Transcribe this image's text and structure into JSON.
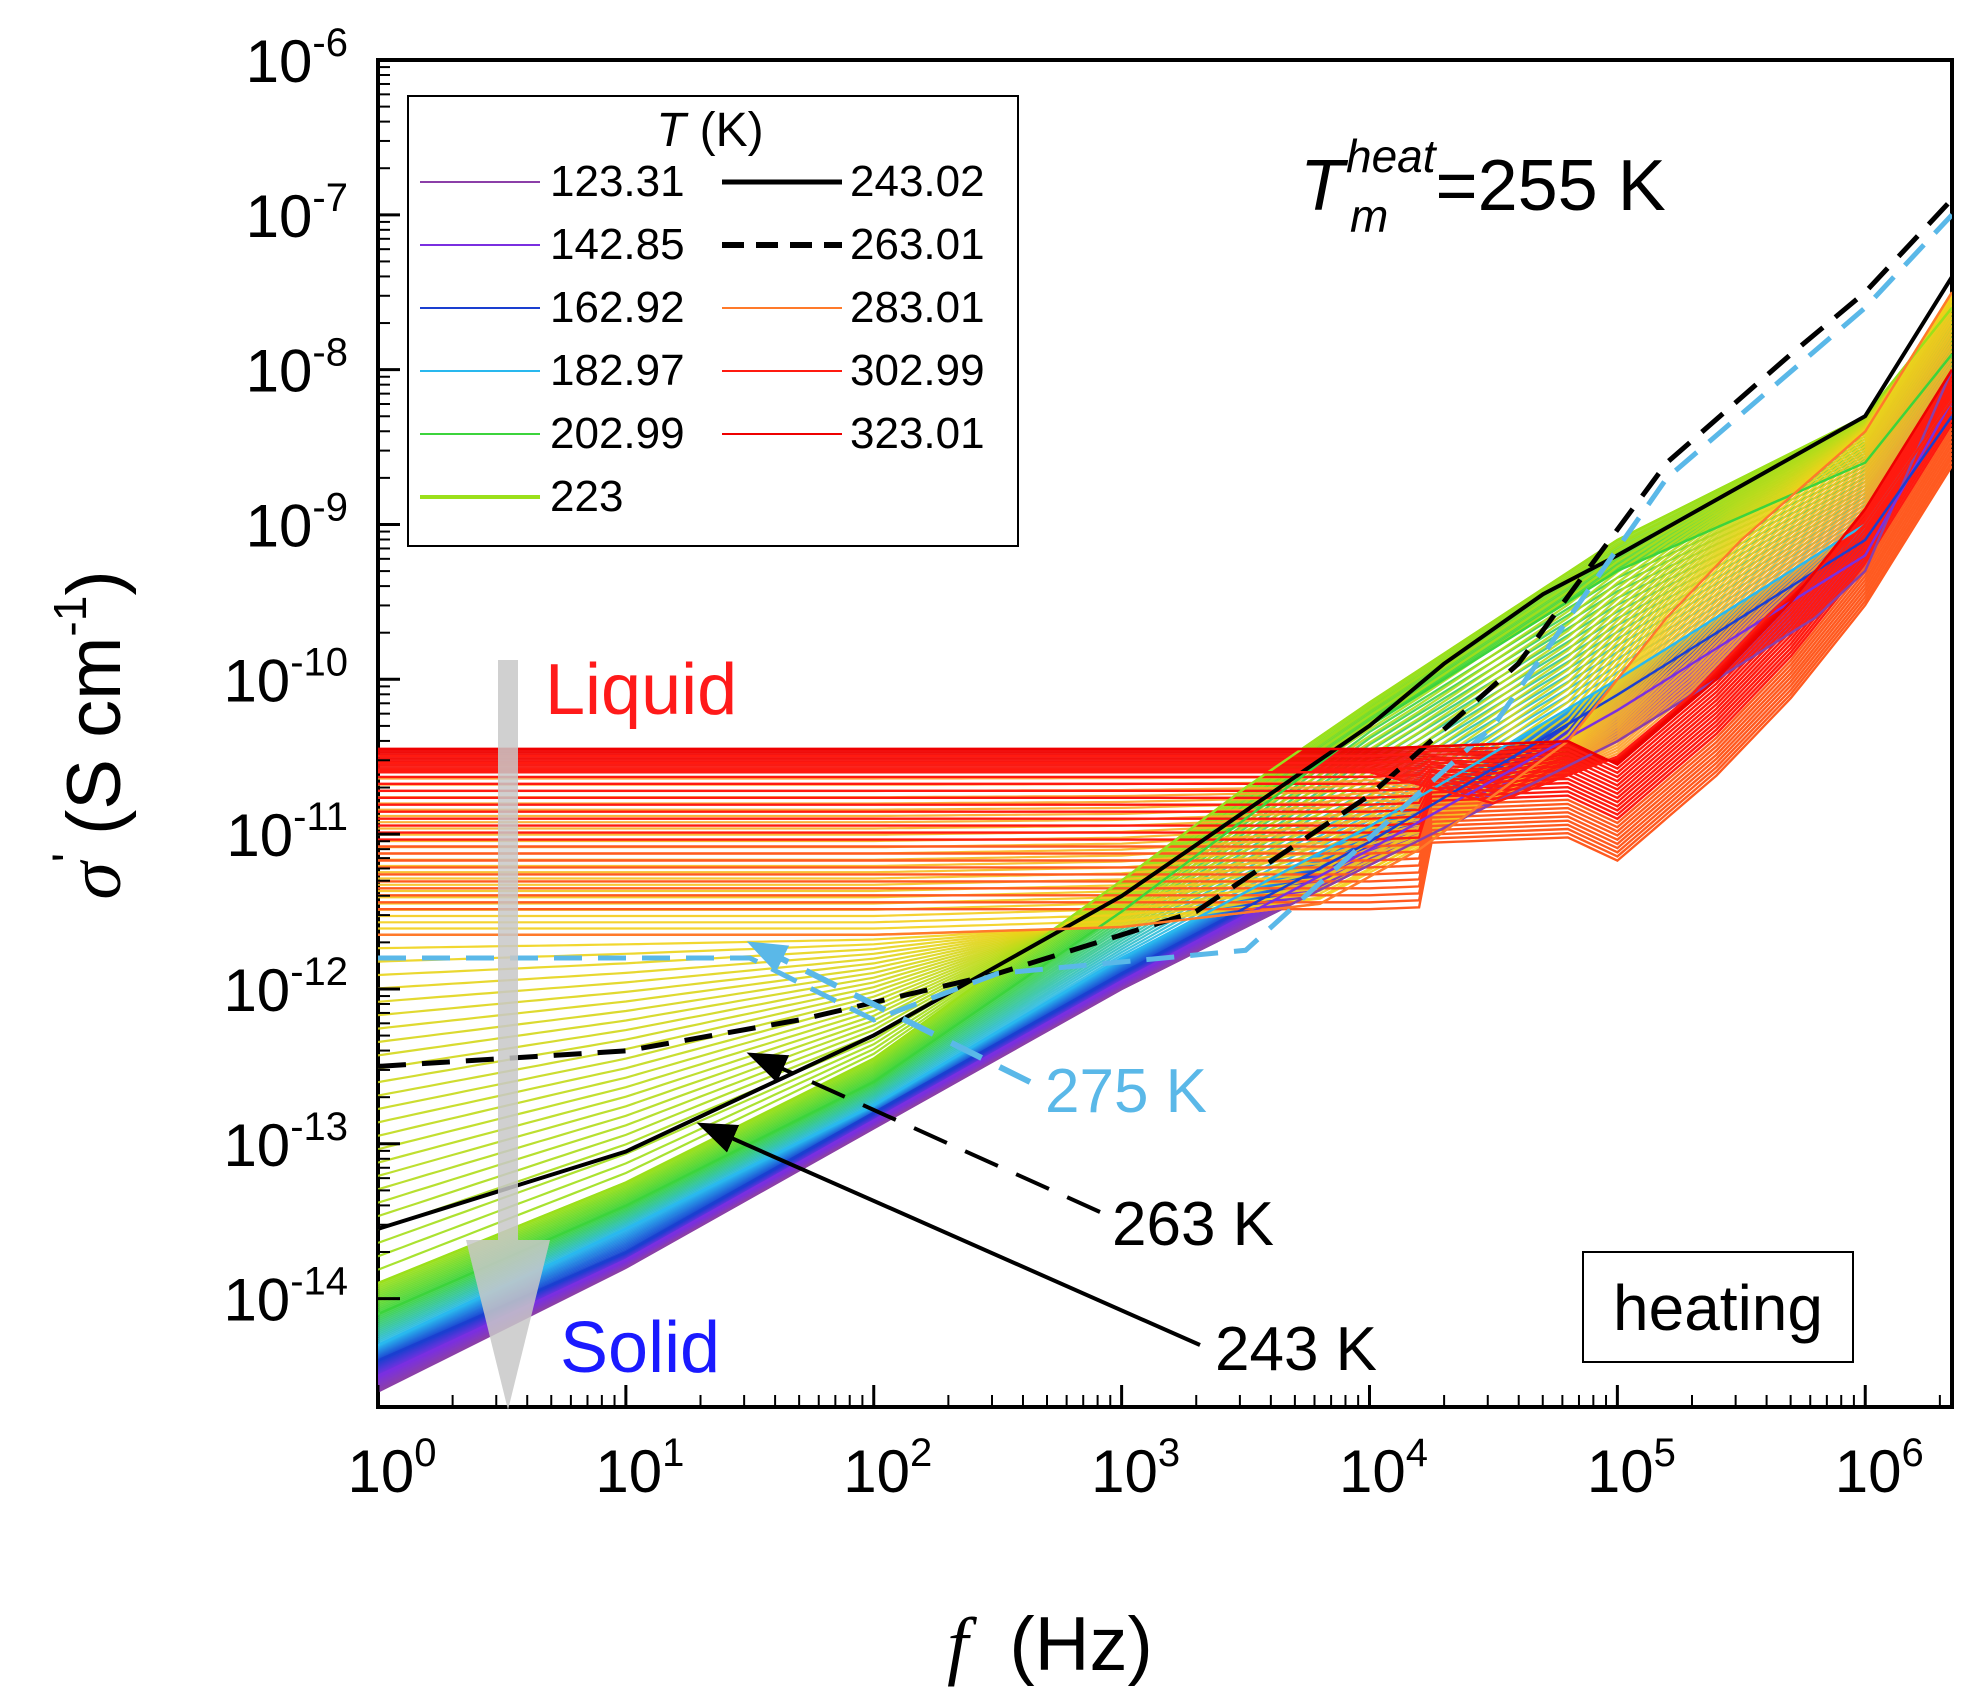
{
  "chart_data": {
    "type": "line",
    "title": "",
    "xlabel": {
      "symbol": "f",
      "unit": "(Hz)"
    },
    "ylabel": {
      "symbol": "σ",
      "prime": "'",
      "unit_left": "(S cm",
      "unit_exp": "-1",
      "unit_right": ")"
    },
    "x_scale": "log",
    "y_scale": "log",
    "xlim_log10": [
      0,
      6.35
    ],
    "ylim_log10": [
      -14.7,
      -6
    ],
    "x_ticks": [
      {
        "log": 0,
        "base": "10",
        "exp": "0"
      },
      {
        "log": 1,
        "base": "10",
        "exp": "1"
      },
      {
        "log": 2,
        "base": "10",
        "exp": "2"
      },
      {
        "log": 3,
        "base": "10",
        "exp": "3"
      },
      {
        "log": 4,
        "base": "10",
        "exp": "4"
      },
      {
        "log": 5,
        "base": "10",
        "exp": "5"
      },
      {
        "log": 6,
        "base": "10",
        "exp": "6"
      }
    ],
    "y_ticks": [
      {
        "log": -14,
        "base": "10",
        "exp": "-14"
      },
      {
        "log": -13,
        "base": "10",
        "exp": "-13"
      },
      {
        "log": -12,
        "base": "10",
        "exp": "-12"
      },
      {
        "log": -11,
        "base": "10",
        "exp": "-11"
      },
      {
        "log": -10,
        "base": "10",
        "exp": "-10"
      },
      {
        "log": -9,
        "base": "10",
        "exp": "-9"
      },
      {
        "log": -8,
        "base": "10",
        "exp": "-8"
      },
      {
        "log": -7,
        "base": "10",
        "exp": "-7"
      },
      {
        "log": -6,
        "base": "10",
        "exp": "-6"
      }
    ],
    "legend": {
      "title_symbol": "T",
      "title_unit": "(K)",
      "placement": "top-left",
      "entries": [
        {
          "label": "123.31",
          "color": "#8b3fa8",
          "style": "thin",
          "column": 0
        },
        {
          "label": "142.85",
          "color": "#7a2fe0",
          "style": "thin",
          "column": 0
        },
        {
          "label": "162.92",
          "color": "#1a3fd0",
          "style": "thin",
          "column": 0
        },
        {
          "label": "182.97",
          "color": "#29b8ee",
          "style": "thin",
          "column": 0
        },
        {
          "label": "202.99",
          "color": "#3cd43c",
          "style": "thin",
          "column": 0
        },
        {
          "label": "223",
          "color": "#9be01a",
          "style": "thin",
          "column": 0
        },
        {
          "label": "243.02",
          "color": "#000000",
          "style": "solid",
          "column": 1
        },
        {
          "label": "263.01",
          "color": "#000000",
          "style": "dashed",
          "column": 1
        },
        {
          "label": "283.01",
          "color": "#ff7a2a",
          "style": "thin",
          "column": 1
        },
        {
          "label": "302.99",
          "color": "#ff1a10",
          "style": "thin",
          "column": 1
        },
        {
          "label": "323.01",
          "color": "#ee0000",
          "style": "thin",
          "column": 1
        }
      ]
    },
    "series": [
      {
        "name": "123.31",
        "color": "#8b3fa8",
        "style": "thin",
        "x_log": [
          0,
          1,
          2,
          3,
          4,
          5,
          5.8,
          6.0,
          6.35
        ],
        "y_log": [
          -14.6,
          -13.8,
          -12.9,
          -12.0,
          -11.2,
          -10.4,
          -9.6,
          -9.3,
          -8.0
        ]
      },
      {
        "name": "142.85",
        "color": "#7a2fe0",
        "style": "thin",
        "x_log": [
          0,
          1,
          2,
          3,
          4,
          5,
          6.0,
          6.35
        ],
        "y_log": [
          -14.5,
          -13.75,
          -12.85,
          -11.95,
          -11.1,
          -10.2,
          -9.2,
          -8.2
        ]
      },
      {
        "name": "162.92",
        "color": "#1a3fd0",
        "style": "thin",
        "x_log": [
          0,
          1,
          2,
          3,
          4,
          5,
          6.0,
          6.35
        ],
        "y_log": [
          -14.4,
          -13.7,
          -12.8,
          -11.9,
          -11.05,
          -10.1,
          -9.1,
          -8.3
        ]
      },
      {
        "name": "182.97",
        "color": "#29b8ee",
        "style": "thin",
        "x_log": [
          0,
          1,
          2,
          3,
          4,
          5,
          6.0,
          6.35
        ],
        "y_log": [
          -14.3,
          -13.55,
          -12.75,
          -11.8,
          -10.95,
          -10.0,
          -9.0,
          -8.2
        ]
      },
      {
        "name": "202.99",
        "color": "#3cd43c",
        "style": "thin",
        "x_log": [
          0,
          1,
          2,
          3,
          4,
          5,
          6.0,
          6.35
        ],
        "y_log": [
          -14.1,
          -13.4,
          -12.6,
          -11.5,
          -10.3,
          -9.3,
          -8.6,
          -7.9
        ]
      },
      {
        "name": "223",
        "color": "#9be01a",
        "style": "thin",
        "x_log": [
          0,
          1,
          2,
          3,
          3.5,
          4,
          5,
          6.0,
          6.35
        ],
        "y_log": [
          -13.9,
          -13.25,
          -12.45,
          -11.3,
          -10.7,
          -10.15,
          -9.1,
          -8.3,
          -7.6
        ]
      },
      {
        "name": "243.02",
        "color": "#000000",
        "style": "solid",
        "x_log": [
          0,
          1,
          2,
          3,
          4,
          4.3,
          4.7,
          5,
          6.0,
          6.35
        ],
        "y_log": [
          -13.55,
          -13.05,
          -12.3,
          -11.4,
          -10.3,
          -9.9,
          -9.45,
          -9.2,
          -8.3,
          -7.4
        ]
      },
      {
        "name": "263.01",
        "color": "#000000",
        "style": "dashed",
        "x_log": [
          0,
          1,
          1.7,
          2.5,
          3.3,
          4,
          4.6,
          5.2,
          5.7,
          6.0,
          6.35
        ],
        "y_log": [
          -12.5,
          -12.4,
          -12.2,
          -11.9,
          -11.5,
          -10.75,
          -9.9,
          -8.6,
          -7.9,
          -7.5,
          -6.9
        ]
      },
      {
        "name": "275",
        "color": "#5ab8e8",
        "style": "dashed",
        "x_log": [
          0,
          1.5,
          2.0,
          2.5,
          3.5,
          4.5,
          5.2,
          6.0,
          6.35
        ],
        "y_log": [
          -11.8,
          -11.8,
          -12.2,
          -11.9,
          -11.75,
          -10.3,
          -8.7,
          -7.6,
          -7.0
        ]
      },
      {
        "name": "283.01",
        "color": "#ff7a2a",
        "style": "thin",
        "x_log": [
          0,
          2,
          3,
          3.8,
          4.2,
          4.8,
          5.2,
          5.5,
          6.0,
          6.35
        ],
        "y_log": [
          -11.65,
          -11.65,
          -11.6,
          -11.45,
          -11.1,
          -10.4,
          -9.6,
          -9.1,
          -8.4,
          -7.5
        ]
      },
      {
        "name": "302.99",
        "color": "#ff1a10",
        "style": "thin",
        "x_log": [
          0,
          2,
          3,
          4,
          4.5,
          5,
          5.3,
          5.6,
          6.0,
          6.35
        ],
        "y_log": [
          -10.6,
          -10.6,
          -10.6,
          -10.6,
          -10.8,
          -10.5,
          -10.1,
          -9.6,
          -9.0,
          -8.2
        ]
      },
      {
        "name": "323.01",
        "color": "#ee0000",
        "style": "thin",
        "x_log": [
          0,
          2,
          3,
          4,
          4.8,
          5.0,
          5.4,
          5.7,
          6.0,
          6.35
        ],
        "y_log": [
          -10.45,
          -10.45,
          -10.45,
          -10.45,
          -10.4,
          -10.55,
          -10.0,
          -9.5,
          -8.9,
          -8.0
        ]
      }
    ],
    "annotations": {
      "liquid": "Liquid",
      "solid": "Solid",
      "heating": "heating",
      "tm_symbol": "T",
      "tm_sub": "m",
      "tm_sup": "heat",
      "tm_value": "=255 K",
      "label_275": "275 K",
      "label_263": "263 K",
      "label_243": "243 K"
    },
    "colors": {
      "liquid": "#ff1a1a",
      "solid": "#1a1aff",
      "label_275": "#5ab8e8",
      "arrow_gray": "#c8c8c8"
    }
  }
}
